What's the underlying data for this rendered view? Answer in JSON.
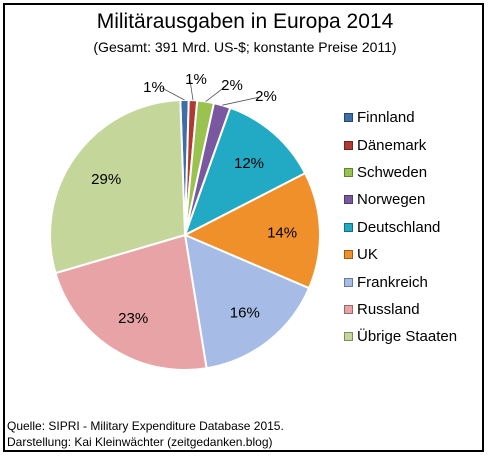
{
  "chart_data": {
    "type": "pie",
    "title": "Militärausgaben in Europa 2014",
    "subtitle": "(Gesamt: 391 Mrd. US-$; konstante Preise 2011)",
    "categories": [
      "Finnland",
      "Dänemark",
      "Schweden",
      "Norwegen",
      "Deutschland",
      "UK",
      "Frankreich",
      "Russland",
      "Übrige Staaten"
    ],
    "values": [
      1,
      1,
      2,
      2,
      12,
      14,
      16,
      23,
      29
    ],
    "value_labels": [
      "1%",
      "1%",
      "2%",
      "2%",
      "12%",
      "14%",
      "16%",
      "23%",
      "29%"
    ],
    "colors": [
      "#3d6ea8",
      "#b03a32",
      "#9ac24f",
      "#7a58a0",
      "#22a9c4",
      "#f0902a",
      "#a6bce6",
      "#e7a3a5",
      "#c4d69a"
    ],
    "legend_position": "right",
    "start_angle_deg": -2
  },
  "footer": {
    "source": "Quelle: SIPRI - Military Expenditure Database 2015.",
    "credit": "Darstellung: Kai Kleinwächter (zeitgedanken.blog)"
  }
}
